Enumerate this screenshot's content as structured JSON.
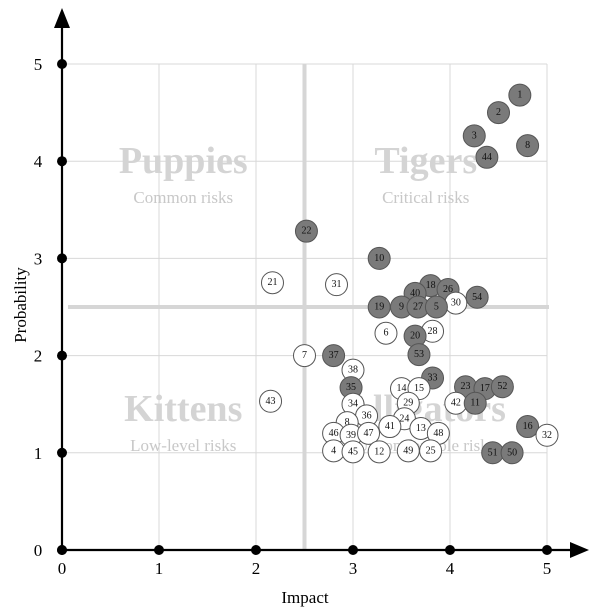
{
  "chart_data": {
    "type": "scatter",
    "xlabel": "Impact",
    "ylabel": "Probability",
    "xlim": [
      0,
      5
    ],
    "ylim": [
      0,
      5
    ],
    "x_ticks": [
      "0",
      "1",
      "2",
      "3",
      "4",
      "5"
    ],
    "y_ticks": [
      "0",
      "1",
      "2",
      "3",
      "4",
      "5"
    ],
    "grid": true,
    "dividers": {
      "x": 2.5,
      "y": 2.5
    },
    "quadrants": [
      {
        "title": "Puppies",
        "subtitle": "Common risks",
        "x": 1.25,
        "y": 4.0
      },
      {
        "title": "Tigers",
        "subtitle": "Critical risks",
        "x": 3.75,
        "y": 4.0
      },
      {
        "title": "Kittens",
        "subtitle": "Low-level risks",
        "x": 1.25,
        "y": 1.45
      },
      {
        "title": "Alligators",
        "subtitle": "Uncomfortable risks",
        "x": 3.75,
        "y": 1.45
      }
    ],
    "colors": {
      "filled": "#7a7a7a",
      "open": "#ffffff",
      "outline": "#555555"
    },
    "points": [
      {
        "label": "1",
        "x": 4.72,
        "y": 4.68,
        "filled": true
      },
      {
        "label": "2",
        "x": 4.5,
        "y": 4.5,
        "filled": true
      },
      {
        "label": "3",
        "x": 4.25,
        "y": 4.26,
        "filled": true
      },
      {
        "label": "8",
        "x": 4.8,
        "y": 4.16,
        "filled": true
      },
      {
        "label": "44",
        "x": 4.38,
        "y": 4.04,
        "filled": true
      },
      {
        "label": "22",
        "x": 2.52,
        "y": 3.28,
        "filled": true
      },
      {
        "label": "10",
        "x": 3.27,
        "y": 3.0,
        "filled": true
      },
      {
        "label": "21",
        "x": 2.17,
        "y": 2.75,
        "filled": false
      },
      {
        "label": "31",
        "x": 2.83,
        "y": 2.73,
        "filled": false
      },
      {
        "label": "18",
        "x": 3.8,
        "y": 2.72,
        "filled": true
      },
      {
        "label": "26",
        "x": 3.98,
        "y": 2.68,
        "filled": true
      },
      {
        "label": "40",
        "x": 3.64,
        "y": 2.64,
        "filled": true
      },
      {
        "label": "54",
        "x": 4.28,
        "y": 2.6,
        "filled": true
      },
      {
        "label": "30",
        "x": 4.06,
        "y": 2.54,
        "filled": false
      },
      {
        "label": "19",
        "x": 3.27,
        "y": 2.5,
        "filled": true
      },
      {
        "label": "9",
        "x": 3.5,
        "y": 2.5,
        "filled": true
      },
      {
        "label": "27",
        "x": 3.67,
        "y": 2.5,
        "filled": true
      },
      {
        "label": "5",
        "x": 3.86,
        "y": 2.5,
        "filled": true
      },
      {
        "label": "6",
        "x": 3.34,
        "y": 2.23,
        "filled": false
      },
      {
        "label": "28",
        "x": 3.82,
        "y": 2.25,
        "filled": false
      },
      {
        "label": "20",
        "x": 3.64,
        "y": 2.2,
        "filled": true
      },
      {
        "label": "7",
        "x": 2.5,
        "y": 2.0,
        "filled": false
      },
      {
        "label": "37",
        "x": 2.8,
        "y": 2.0,
        "filled": true
      },
      {
        "label": "53",
        "x": 3.68,
        "y": 2.01,
        "filled": true
      },
      {
        "label": "38",
        "x": 3.0,
        "y": 1.85,
        "filled": false
      },
      {
        "label": "33",
        "x": 3.82,
        "y": 1.77,
        "filled": true
      },
      {
        "label": "35",
        "x": 2.98,
        "y": 1.67,
        "filled": true
      },
      {
        "label": "14",
        "x": 3.5,
        "y": 1.66,
        "filled": false
      },
      {
        "label": "15",
        "x": 3.68,
        "y": 1.66,
        "filled": false
      },
      {
        "label": "23",
        "x": 4.16,
        "y": 1.68,
        "filled": true
      },
      {
        "label": "17",
        "x": 4.36,
        "y": 1.66,
        "filled": true
      },
      {
        "label": "52",
        "x": 4.54,
        "y": 1.68,
        "filled": true
      },
      {
        "label": "43",
        "x": 2.15,
        "y": 1.53,
        "filled": false
      },
      {
        "label": "34",
        "x": 3.0,
        "y": 1.5,
        "filled": false
      },
      {
        "label": "29",
        "x": 3.57,
        "y": 1.51,
        "filled": false
      },
      {
        "label": "42",
        "x": 4.06,
        "y": 1.51,
        "filled": false
      },
      {
        "label": "11",
        "x": 4.26,
        "y": 1.51,
        "filled": true
      },
      {
        "label": "36",
        "x": 3.14,
        "y": 1.38,
        "filled": false
      },
      {
        "label": "24",
        "x": 3.53,
        "y": 1.35,
        "filled": false
      },
      {
        "label": "8",
        "x": 2.94,
        "y": 1.31,
        "filled": false
      },
      {
        "label": "41",
        "x": 3.38,
        "y": 1.27,
        "filled": false
      },
      {
        "label": "13",
        "x": 3.7,
        "y": 1.25,
        "filled": false
      },
      {
        "label": "16",
        "x": 4.8,
        "y": 1.27,
        "filled": true
      },
      {
        "label": "46",
        "x": 2.8,
        "y": 1.2,
        "filled": false
      },
      {
        "label": "39",
        "x": 2.98,
        "y": 1.18,
        "filled": false
      },
      {
        "label": "47",
        "x": 3.16,
        "y": 1.2,
        "filled": false
      },
      {
        "label": "48",
        "x": 3.88,
        "y": 1.2,
        "filled": false
      },
      {
        "label": "32",
        "x": 5.0,
        "y": 1.18,
        "filled": false
      },
      {
        "label": "4",
        "x": 2.8,
        "y": 1.02,
        "filled": false
      },
      {
        "label": "45",
        "x": 3.0,
        "y": 1.01,
        "filled": false
      },
      {
        "label": "12",
        "x": 3.27,
        "y": 1.01,
        "filled": false
      },
      {
        "label": "49",
        "x": 3.57,
        "y": 1.02,
        "filled": false
      },
      {
        "label": "25",
        "x": 3.8,
        "y": 1.02,
        "filled": false
      },
      {
        "label": "51",
        "x": 4.44,
        "y": 1.0,
        "filled": true
      },
      {
        "label": "50",
        "x": 4.64,
        "y": 1.0,
        "filled": true
      }
    ]
  }
}
